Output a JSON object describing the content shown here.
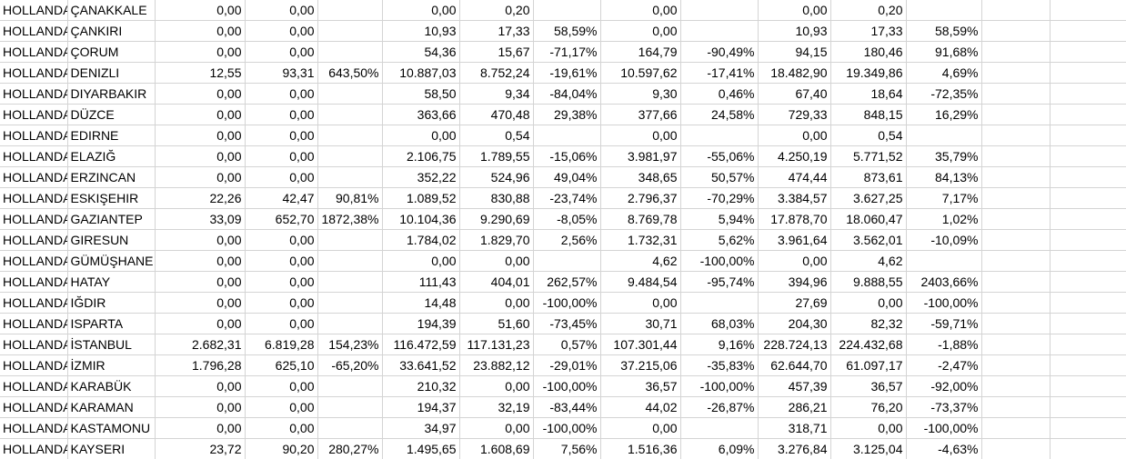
{
  "rows": [
    [
      "HOLLANDA",
      "ÇANAKKALE",
      "0,00",
      "0,00",
      "",
      "0,00",
      "0,20",
      "",
      "0,00",
      "",
      "0,00",
      "0,20",
      ""
    ],
    [
      "HOLLANDA",
      "ÇANKIRI",
      "0,00",
      "0,00",
      "",
      "10,93",
      "17,33",
      "58,59%",
      "0,00",
      "",
      "10,93",
      "17,33",
      "58,59%"
    ],
    [
      "HOLLANDA",
      "ÇORUM",
      "0,00",
      "0,00",
      "",
      "54,36",
      "15,67",
      "-71,17%",
      "164,79",
      "-90,49%",
      "94,15",
      "180,46",
      "91,68%"
    ],
    [
      "HOLLANDA",
      "DENIZLI",
      "12,55",
      "93,31",
      "643,50%",
      "10.887,03",
      "8.752,24",
      "-19,61%",
      "10.597,62",
      "-17,41%",
      "18.482,90",
      "19.349,86",
      "4,69%"
    ],
    [
      "HOLLANDA",
      "DIYARBAKIR",
      "0,00",
      "0,00",
      "",
      "58,50",
      "9,34",
      "-84,04%",
      "9,30",
      "0,46%",
      "67,40",
      "18,64",
      "-72,35%"
    ],
    [
      "HOLLANDA",
      "DÜZCE",
      "0,00",
      "0,00",
      "",
      "363,66",
      "470,48",
      "29,38%",
      "377,66",
      "24,58%",
      "729,33",
      "848,15",
      "16,29%"
    ],
    [
      "HOLLANDA",
      "EDIRNE",
      "0,00",
      "0,00",
      "",
      "0,00",
      "0,54",
      "",
      "0,00",
      "",
      "0,00",
      "0,54",
      ""
    ],
    [
      "HOLLANDA",
      "ELAZIĞ",
      "0,00",
      "0,00",
      "",
      "2.106,75",
      "1.789,55",
      "-15,06%",
      "3.981,97",
      "-55,06%",
      "4.250,19",
      "5.771,52",
      "35,79%"
    ],
    [
      "HOLLANDA",
      "ERZINCAN",
      "0,00",
      "0,00",
      "",
      "352,22",
      "524,96",
      "49,04%",
      "348,65",
      "50,57%",
      "474,44",
      "873,61",
      "84,13%"
    ],
    [
      "HOLLANDA",
      "ESKIŞEHIR",
      "22,26",
      "42,47",
      "90,81%",
      "1.089,52",
      "830,88",
      "-23,74%",
      "2.796,37",
      "-70,29%",
      "3.384,57",
      "3.627,25",
      "7,17%"
    ],
    [
      "HOLLANDA",
      "GAZIANTEP",
      "33,09",
      "652,70",
      "1872,38%",
      "10.104,36",
      "9.290,69",
      "-8,05%",
      "8.769,78",
      "5,94%",
      "17.878,70",
      "18.060,47",
      "1,02%"
    ],
    [
      "HOLLANDA",
      "GIRESUN",
      "0,00",
      "0,00",
      "",
      "1.784,02",
      "1.829,70",
      "2,56%",
      "1.732,31",
      "5,62%",
      "3.961,64",
      "3.562,01",
      "-10,09%"
    ],
    [
      "HOLLANDA",
      "GÜMÜŞHANE",
      "0,00",
      "0,00",
      "",
      "0,00",
      "0,00",
      "",
      "4,62",
      "-100,00%",
      "0,00",
      "4,62",
      ""
    ],
    [
      "HOLLANDA",
      "HATAY",
      "0,00",
      "0,00",
      "",
      "111,43",
      "404,01",
      "262,57%",
      "9.484,54",
      "-95,74%",
      "394,96",
      "9.888,55",
      "2403,66%"
    ],
    [
      "HOLLANDA",
      "IĞDIR",
      "0,00",
      "0,00",
      "",
      "14,48",
      "0,00",
      "-100,00%",
      "0,00",
      "",
      "27,69",
      "0,00",
      "-100,00%"
    ],
    [
      "HOLLANDA",
      "ISPARTA",
      "0,00",
      "0,00",
      "",
      "194,39",
      "51,60",
      "-73,45%",
      "30,71",
      "68,03%",
      "204,30",
      "82,32",
      "-59,71%"
    ],
    [
      "HOLLANDA",
      "İSTANBUL",
      "2.682,31",
      "6.819,28",
      "154,23%",
      "116.472,59",
      "117.131,23",
      "0,57%",
      "107.301,44",
      "9,16%",
      "228.724,13",
      "224.432,68",
      "-1,88%"
    ],
    [
      "HOLLANDA",
      "İZMIR",
      "1.796,28",
      "625,10",
      "-65,20%",
      "33.641,52",
      "23.882,12",
      "-29,01%",
      "37.215,06",
      "-35,83%",
      "62.644,70",
      "61.097,17",
      "-2,47%"
    ],
    [
      "HOLLANDA",
      "KARABÜK",
      "0,00",
      "0,00",
      "",
      "210,32",
      "0,00",
      "-100,00%",
      "36,57",
      "-100,00%",
      "457,39",
      "36,57",
      "-92,00%"
    ],
    [
      "HOLLANDA",
      "KARAMAN",
      "0,00",
      "0,00",
      "",
      "194,37",
      "32,19",
      "-83,44%",
      "44,02",
      "-26,87%",
      "286,21",
      "76,20",
      "-73,37%"
    ],
    [
      "HOLLANDA",
      "KASTAMONU",
      "0,00",
      "0,00",
      "",
      "34,97",
      "0,00",
      "-100,00%",
      "0,00",
      "",
      "318,71",
      "0,00",
      "-100,00%"
    ],
    [
      "HOLLANDA",
      "KAYSERI",
      "23,72",
      "90,20",
      "280,27%",
      "1.495,65",
      "1.608,69",
      "7,56%",
      "1.516,36",
      "6,09%",
      "3.276,84",
      "3.125,04",
      "-4,63%"
    ]
  ]
}
